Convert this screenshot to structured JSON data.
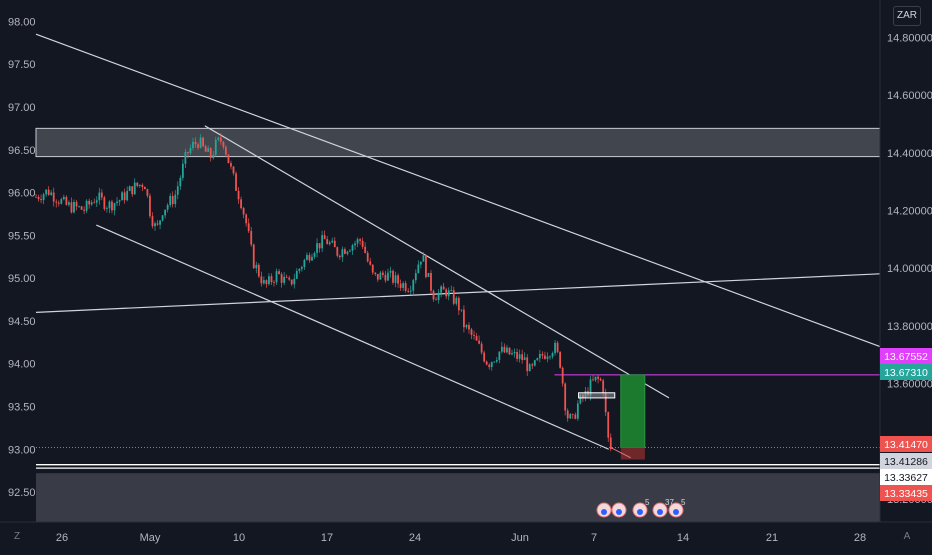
{
  "currency_label": "ZAR",
  "corner_labels": {
    "bottom_left": "Z",
    "bottom_right": "A"
  },
  "colors": {
    "background": "#131722",
    "axis_text": "#b2b5be",
    "candle_up": "#26a69a",
    "candle_down": "#ef5350",
    "trendline": "#d1d4dc",
    "zone_fill": "#4a4d55",
    "target_box": "#1b7a2e",
    "stop_box": "#7a2a2a",
    "price_line_magenta": "#e040fb"
  },
  "chart_data": {
    "type": "candlestick",
    "title": "",
    "left_axis": {
      "ticks": [
        "98.00",
        "97.50",
        "97.00",
        "96.50",
        "96.00",
        "95.50",
        "95.00",
        "94.50",
        "94.00",
        "93.50",
        "93.00",
        "92.50"
      ],
      "range": [
        92.15,
        98.25
      ]
    },
    "right_axis": {
      "ticks": [
        "14.80000",
        "14.60000",
        "14.40000",
        "14.20000",
        "14.00000",
        "13.80000",
        "13.60000",
        "13.20000"
      ],
      "range": [
        13.12,
        14.93
      ]
    },
    "x_axis": {
      "ticks": [
        "26",
        "May",
        "10",
        "17",
        "24",
        "Jun",
        "7",
        "14",
        "21",
        "28"
      ]
    },
    "price_labels": [
      {
        "value": "13.67552",
        "color": "#e040fb",
        "text_color": "#ffffff"
      },
      {
        "value": "13.67310",
        "color": "#26a69a",
        "text_color": "#ffffff"
      },
      {
        "value": "13.41470",
        "color": "#ef5350",
        "text_color": "#ffffff"
      },
      {
        "value": "13.41286",
        "color": "#d1d4dc",
        "text_color": "#131722"
      },
      {
        "value": "13.33627",
        "color": "#ffffff",
        "text_color": "#131722"
      },
      {
        "value": "13.33435",
        "color": "#ef5350",
        "text_color": "#ffffff"
      }
    ],
    "price_path": [
      [
        0,
        95.95
      ],
      [
        2,
        96.02
      ],
      [
        5,
        95.85
      ],
      [
        8,
        95.8
      ],
      [
        10,
        95.95
      ],
      [
        12,
        95.85
      ],
      [
        14,
        95.92
      ],
      [
        16,
        96.05
      ],
      [
        18,
        96.12
      ],
      [
        19,
        95.75
      ],
      [
        20,
        95.55
      ],
      [
        21,
        95.8
      ],
      [
        23,
        95.95
      ],
      [
        24,
        96.2
      ],
      [
        25,
        96.45
      ],
      [
        26,
        96.55
      ],
      [
        27,
        96.6
      ],
      [
        28,
        96.48
      ],
      [
        29,
        96.42
      ],
      [
        30,
        96.58
      ],
      [
        31,
        96.62
      ],
      [
        32,
        96.35
      ],
      [
        33,
        96.1
      ],
      [
        34,
        95.9
      ],
      [
        35,
        95.6
      ],
      [
        36,
        95.2
      ],
      [
        37,
        95.05
      ],
      [
        38,
        94.9
      ],
      [
        40,
        95.05
      ],
      [
        42,
        94.92
      ],
      [
        44,
        95.15
      ],
      [
        46,
        95.35
      ],
      [
        48,
        95.45
      ],
      [
        50,
        95.3
      ],
      [
        52,
        95.38
      ],
      [
        54,
        95.45
      ],
      [
        55,
        95.2
      ],
      [
        56,
        95.0
      ],
      [
        58,
        95.05
      ],
      [
        60,
        94.95
      ],
      [
        62,
        94.9
      ],
      [
        63,
        95.1
      ],
      [
        64,
        95.28
      ],
      [
        65,
        95.0
      ],
      [
        66,
        94.8
      ],
      [
        68,
        94.85
      ],
      [
        70,
        94.7
      ],
      [
        71,
        94.45
      ],
      [
        73,
        94.25
      ],
      [
        75,
        94.0
      ],
      [
        77,
        94.15
      ],
      [
        79,
        94.1
      ],
      [
        81,
        94.05
      ],
      [
        82,
        93.9
      ],
      [
        84,
        94.1
      ],
      [
        86,
        94.2
      ],
      [
        87,
        94.0
      ],
      [
        88,
        93.4
      ],
      [
        89,
        93.32
      ],
      [
        90,
        93.55
      ],
      [
        91,
        93.62
      ],
      [
        92,
        93.75
      ],
      [
        93,
        93.82
      ],
      [
        94,
        93.78
      ],
      [
        94.5,
        93.4
      ],
      [
        95,
        93.05
      ],
      [
        95.5,
        92.98
      ]
    ],
    "x_domain": [
      0,
      140
    ],
    "annotations": {
      "upper_zone": [
        96.42,
        96.75
      ],
      "lower_zone": [
        91.9,
        92.72
      ],
      "support_double_line": [
        92.78,
        92.82
      ],
      "magenta_price_line": 93.87,
      "red_dotted_line": 93.02,
      "long_position": {
        "x_range": [
          97,
          101
        ],
        "entry": 93.02,
        "target": 93.87,
        "stop": 92.88
      },
      "channel_upper": [
        [
          28,
          96.78
        ],
        [
          105,
          93.6
        ]
      ],
      "channel_lower": [
        [
          10,
          95.62
        ],
        [
          95,
          93.0
        ]
      ],
      "trend_descending": [
        [
          0,
          97.85
        ],
        [
          140,
          94.2
        ]
      ],
      "trend_ascending": [
        [
          0,
          94.6
        ],
        [
          140,
          95.05
        ]
      ],
      "flag_box": {
        "x_range": [
          90,
          96
        ],
        "y_range": [
          93.6,
          93.66
        ]
      }
    },
    "event_markers": [
      "",
      "",
      "5",
      "37",
      "5"
    ]
  }
}
